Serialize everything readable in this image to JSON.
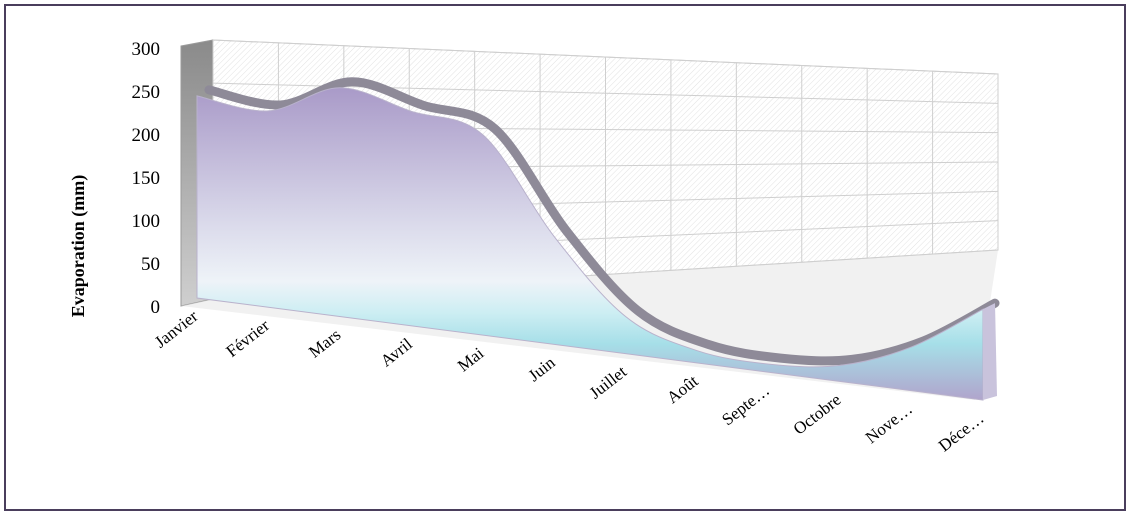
{
  "chart_data": {
    "type": "area",
    "title": "",
    "ylabel": "Evaporation (mm)",
    "xlabel": "",
    "ylim": [
      0,
      300
    ],
    "yticks": [
      "0",
      "50",
      "100",
      "150",
      "200",
      "250",
      "300"
    ],
    "categories": [
      "Janvier",
      "Février",
      "Mars",
      "Avril",
      "Mai",
      "Juin",
      "Juillet",
      "Août",
      "Septe…",
      "Octobre",
      "Nove…",
      "Déce…"
    ],
    "series": [
      {
        "values": [
          235,
          230,
          270,
          255,
          240,
          130,
          45,
          15,
          10,
          20,
          55,
          115
        ]
      }
    ],
    "grid": true,
    "legend": "none",
    "colors": {
      "area_top": "#a99ac8",
      "area_mid": "#eef3f8",
      "area_band": "#9ee6ee",
      "ridge": "#8a8a8a",
      "frame": "#4a3e5c"
    }
  }
}
